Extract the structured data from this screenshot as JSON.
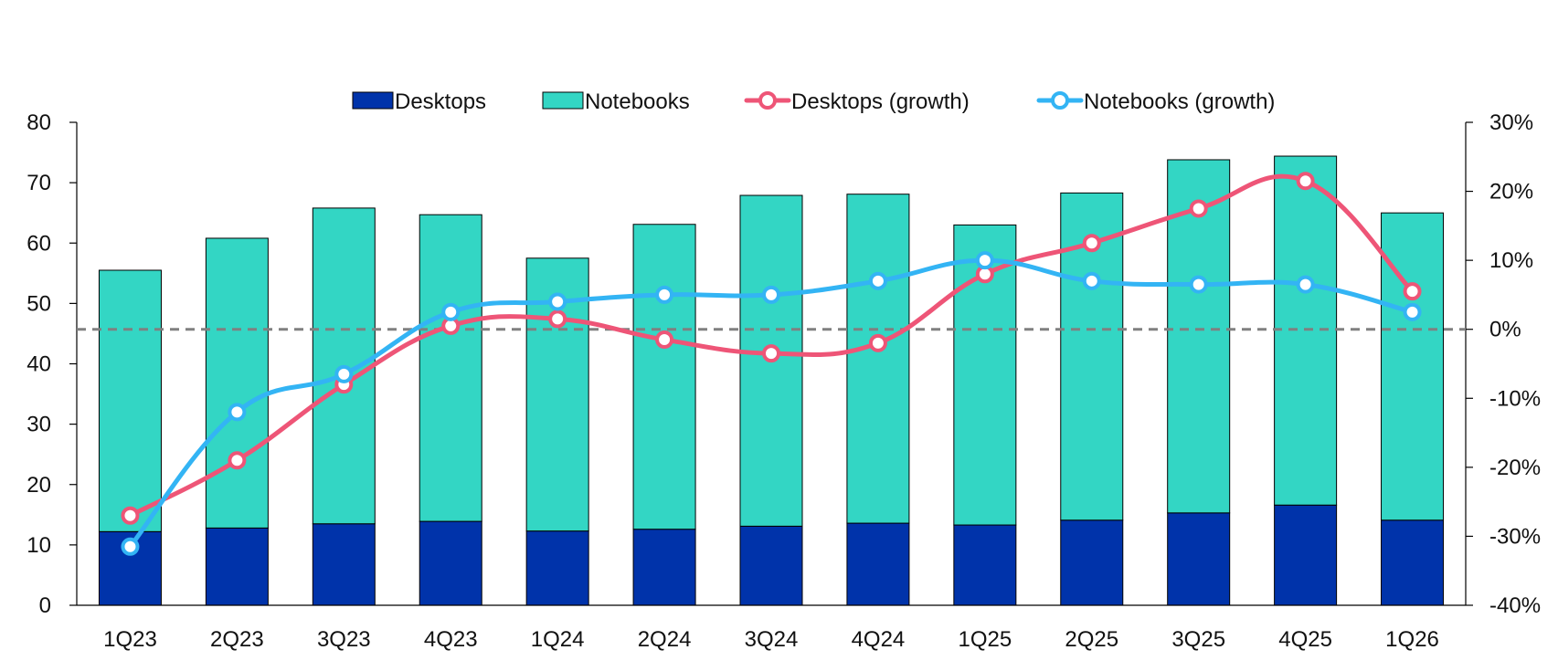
{
  "chart_data": {
    "type": "bar",
    "stacked": true,
    "categories": [
      "1Q23",
      "2Q23",
      "3Q23",
      "4Q23",
      "1Q24",
      "2Q24",
      "3Q24",
      "4Q24",
      "1Q25",
      "2Q25",
      "3Q25",
      "4Q25",
      "1Q26"
    ],
    "series": [
      {
        "name": "Desktops",
        "kind": "bar",
        "axis": "left",
        "color": "#0033AA",
        "values": [
          12.2,
          12.8,
          13.5,
          13.9,
          12.3,
          12.6,
          13.1,
          13.6,
          13.3,
          14.1,
          15.3,
          16.6,
          14.1
        ]
      },
      {
        "name": "Notebooks",
        "kind": "bar",
        "axis": "left",
        "color": "#33D6C4",
        "values": [
          43.3,
          48.0,
          52.3,
          50.8,
          45.2,
          50.5,
          54.8,
          54.5,
          49.7,
          54.2,
          58.5,
          57.8,
          50.9
        ]
      },
      {
        "name": "Desktops (growth)",
        "kind": "line",
        "axis": "right",
        "color": "#EE5577",
        "values": [
          -27.0,
          -19.0,
          -8.0,
          0.5,
          1.5,
          -1.5,
          -3.5,
          -2.0,
          8.0,
          12.5,
          17.5,
          21.5,
          5.5
        ]
      },
      {
        "name": "Notebooks (growth)",
        "kind": "line",
        "axis": "right",
        "color": "#33B4F4",
        "values": [
          -31.5,
          -12.0,
          -6.5,
          2.5,
          4.0,
          5.0,
          5.0,
          7.0,
          10.0,
          7.0,
          6.5,
          6.5,
          2.5
        ]
      }
    ],
    "title": "",
    "xlabel": "",
    "ylabel": "",
    "ylim": [
      0,
      80
    ],
    "yticks": [
      "0",
      "10",
      "20",
      "30",
      "40",
      "50",
      "60",
      "70",
      "80"
    ],
    "y2lim": [
      -40,
      30
    ],
    "y2ticks": [
      "-40%",
      "-30%",
      "-20%",
      "-10%",
      "0%",
      "10%",
      "20%",
      "30%"
    ],
    "reference_line": {
      "axis": "right",
      "value": 0,
      "style": "dashed",
      "color": "#808080"
    },
    "legend_position": "top-center",
    "grid": false
  }
}
